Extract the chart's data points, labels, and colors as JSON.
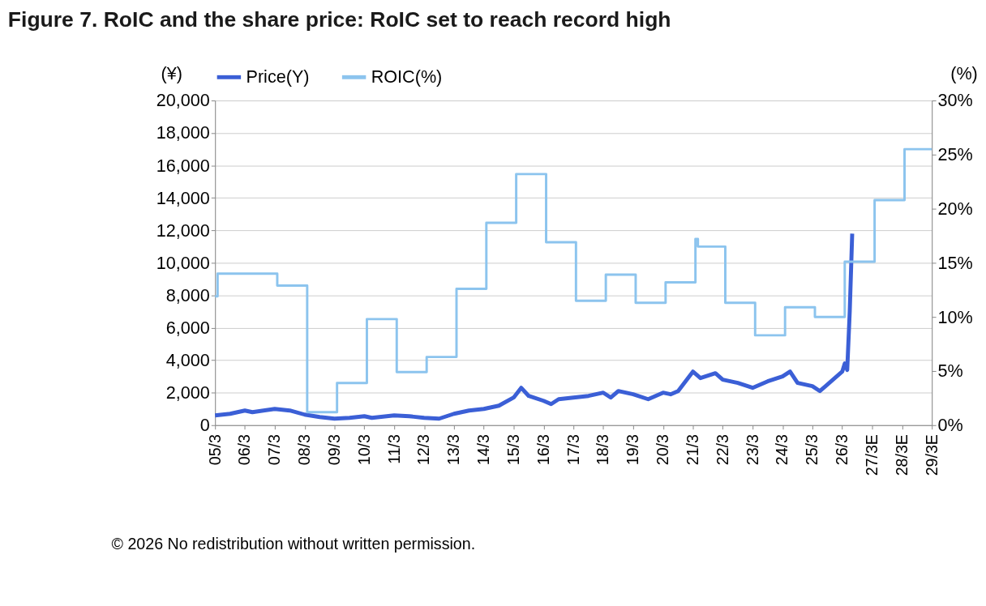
{
  "chart_data": {
    "type": "line",
    "title": "Figure 7. RoIC and the share price: RoIC set to reach record high",
    "ylabel": "(¥)",
    "y2label": "(%)",
    "annotations": [
      "© 2026 No redistribution without written permission."
    ],
    "xlim": [
      "2005-03",
      "2029-03"
    ],
    "xticks": [
      {
        "value": "2005-03",
        "label": "05/3"
      },
      {
        "value": "2006-03",
        "label": "06/3"
      },
      {
        "value": "2007-03",
        "label": "07/3"
      },
      {
        "value": "2008-03",
        "label": "08/3"
      },
      {
        "value": "2009-03",
        "label": "09/3"
      },
      {
        "value": "2010-03",
        "label": "10/3"
      },
      {
        "value": "2011-03",
        "label": "11/3"
      },
      {
        "value": "2012-03",
        "label": "12/3"
      },
      {
        "value": "2013-03",
        "label": "13/3"
      },
      {
        "value": "2014-03",
        "label": "14/3"
      },
      {
        "value": "2015-03",
        "label": "15/3"
      },
      {
        "value": "2016-03",
        "label": "16/3"
      },
      {
        "value": "2017-03",
        "label": "17/3"
      },
      {
        "value": "2018-03",
        "label": "18/3"
      },
      {
        "value": "2019-03",
        "label": "19/3"
      },
      {
        "value": "2020-03",
        "label": "20/3"
      },
      {
        "value": "2021-03",
        "label": "21/3"
      },
      {
        "value": "2022-03",
        "label": "22/3"
      },
      {
        "value": "2023-03",
        "label": "23/3"
      },
      {
        "value": "2024-03",
        "label": "24/3"
      },
      {
        "value": "2025-03",
        "label": "25/3"
      },
      {
        "value": "2026-03",
        "label": "26/3"
      },
      {
        "value": "2027-03",
        "label": "27/3E"
      },
      {
        "value": "2028-03",
        "label": "28/3E"
      },
      {
        "value": "2029-03",
        "label": "29/3E"
      }
    ],
    "ylim": [
      0,
      20000
    ],
    "yticks": [
      {
        "value": 0,
        "label": "0"
      },
      {
        "value": 2000,
        "label": "2,000"
      },
      {
        "value": 4000,
        "label": "4,000"
      },
      {
        "value": 6000,
        "label": "6,000"
      },
      {
        "value": 8000,
        "label": "8,000"
      },
      {
        "value": 10000,
        "label": "10,000"
      },
      {
        "value": 12000,
        "label": "12,000"
      },
      {
        "value": 14000,
        "label": "14,000"
      },
      {
        "value": 16000,
        "label": "16,000"
      },
      {
        "value": 18000,
        "label": "18,000"
      },
      {
        "value": 20000,
        "label": "20,000"
      }
    ],
    "y2lim": [
      0,
      30
    ],
    "y2ticks": [
      {
        "value": 0,
        "label": "0%"
      },
      {
        "value": 5,
        "label": "5%"
      },
      {
        "value": 10,
        "label": "10%"
      },
      {
        "value": 15,
        "label": "15%"
      },
      {
        "value": 20,
        "label": "20%"
      },
      {
        "value": 25,
        "label": "25%"
      },
      {
        "value": 30,
        "label": "30%"
      }
    ],
    "grid": "y",
    "legend": "top",
    "marker": "none",
    "series": [
      {
        "name": "Price(Y)",
        "type": "line",
        "color": "#3b5fd6",
        "x": [
          "2005-03",
          "2005-09",
          "2006-03",
          "2006-06",
          "2007-03",
          "2007-09",
          "2008-03",
          "2008-09",
          "2009-03",
          "2009-09",
          "2010-03",
          "2010-06",
          "2011-03",
          "2011-09",
          "2012-03",
          "2012-09",
          "2013-03",
          "2013-09",
          "2014-03",
          "2014-09",
          "2015-03",
          "2015-06",
          "2015-09",
          "2016-03",
          "2016-06",
          "2016-09",
          "2017-03",
          "2017-09",
          "2018-03",
          "2018-06",
          "2018-09",
          "2019-03",
          "2019-09",
          "2020-03",
          "2020-06",
          "2020-09",
          "2021-03",
          "2021-06",
          "2021-12",
          "2022-03",
          "2022-09",
          "2023-03",
          "2023-09",
          "2024-03",
          "2024-06",
          "2024-09",
          "2025-03",
          "2025-06",
          "2025-09",
          "2026-03",
          "2026-04",
          "2026-05",
          "2026-06",
          "2026-07"
        ],
        "values": [
          600,
          700,
          900,
          800,
          1000,
          900,
          650,
          500,
          400,
          450,
          550,
          450,
          600,
          550,
          450,
          400,
          700,
          900,
          1000,
          1200,
          1700,
          2300,
          1800,
          1500,
          1300,
          1600,
          1700,
          1800,
          2000,
          1700,
          2100,
          1900,
          1600,
          2000,
          1900,
          2100,
          3300,
          2900,
          3200,
          2800,
          2600,
          2300,
          2700,
          3000,
          3300,
          2600,
          2400,
          2100,
          2500,
          3300,
          3800,
          3400,
          7000,
          11800
        ]
      },
      {
        "name": "ROIC(%)",
        "type": "step",
        "axis": "y2",
        "color": "#8cc4ee",
        "x": [
          "2005-03",
          "2005-04",
          "2007-04",
          "2008-04",
          "2009-04",
          "2010-04",
          "2011-04",
          "2012-04",
          "2013-04",
          "2014-04",
          "2015-04",
          "2016-04",
          "2017-04",
          "2018-04",
          "2019-04",
          "2020-04",
          "2021-04",
          "2021-05",
          "2022-04",
          "2023-04",
          "2024-04",
          "2025-04",
          "2026-04",
          "2027-04",
          "2028-04",
          "2029-03"
        ],
        "values": [
          11.9,
          14.0,
          12.9,
          1.2,
          3.9,
          9.8,
          4.9,
          6.3,
          12.6,
          18.7,
          23.2,
          16.9,
          11.5,
          13.9,
          11.3,
          13.2,
          17.2,
          16.5,
          11.3,
          8.3,
          10.9,
          10.0,
          15.1,
          20.8,
          25.5,
          25.5
        ]
      }
    ]
  }
}
